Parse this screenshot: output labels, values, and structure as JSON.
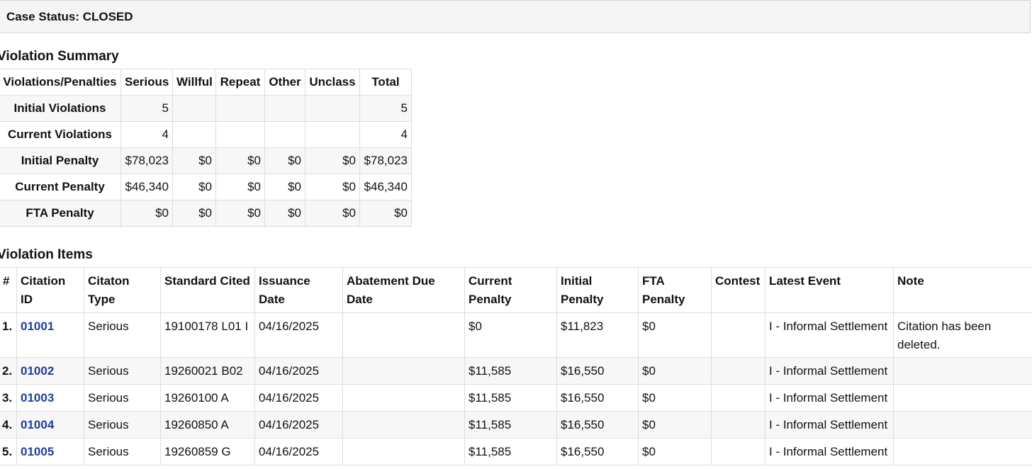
{
  "case_status": "Case Status: CLOSED",
  "violation_summary": {
    "title": "Violation Summary",
    "headers": [
      "Violations/Penalties",
      "Serious",
      "Willful",
      "Repeat",
      "Other",
      "Unclass",
      "Total"
    ],
    "rows": [
      {
        "label": "Initial Violations",
        "cells": [
          "5",
          "",
          "",
          "",
          "",
          "5"
        ]
      },
      {
        "label": "Current Violations",
        "cells": [
          "4",
          "",
          "",
          "",
          "",
          "4"
        ]
      },
      {
        "label": "Initial Penalty",
        "cells": [
          "$78,023",
          "$0",
          "$0",
          "$0",
          "$0",
          "$78,023"
        ]
      },
      {
        "label": "Current Penalty",
        "cells": [
          "$46,340",
          "$0",
          "$0",
          "$0",
          "$0",
          "$46,340"
        ]
      },
      {
        "label": "FTA Penalty",
        "cells": [
          "$0",
          "$0",
          "$0",
          "$0",
          "$0",
          "$0"
        ]
      }
    ]
  },
  "violation_items": {
    "title": "Violation Items",
    "headers": [
      "#",
      "Citation ID",
      "Citaton Type",
      "Standard Cited",
      "Issuance Date",
      "Abatement Due Date",
      "Current Penalty",
      "Initial Penalty",
      "FTA Penalty",
      "Contest",
      "Latest Event",
      "Note"
    ],
    "rows": [
      {
        "num": "1.",
        "citation_id": "01001",
        "type": "Serious",
        "standard": "19100178 L01 I",
        "issuance_date": "04/16/2025",
        "abatement_due": "",
        "current_penalty": "$0",
        "initial_penalty": "$11,823",
        "fta_penalty": "$0",
        "contest": "",
        "latest_event": "I - Informal Settlement",
        "note": "Citation has been deleted."
      },
      {
        "num": "2.",
        "citation_id": "01002",
        "type": "Serious",
        "standard": "19260021 B02",
        "issuance_date": "04/16/2025",
        "abatement_due": "",
        "current_penalty": "$11,585",
        "initial_penalty": "$16,550",
        "fta_penalty": "$0",
        "contest": "",
        "latest_event": "I - Informal Settlement",
        "note": ""
      },
      {
        "num": "3.",
        "citation_id": "01003",
        "type": "Serious",
        "standard": "19260100 A",
        "issuance_date": "04/16/2025",
        "abatement_due": "",
        "current_penalty": "$11,585",
        "initial_penalty": "$16,550",
        "fta_penalty": "$0",
        "contest": "",
        "latest_event": "I - Informal Settlement",
        "note": ""
      },
      {
        "num": "4.",
        "citation_id": "01004",
        "type": "Serious",
        "standard": "19260850 A",
        "issuance_date": "04/16/2025",
        "abatement_due": "",
        "current_penalty": "$11,585",
        "initial_penalty": "$16,550",
        "fta_penalty": "$0",
        "contest": "",
        "latest_event": "I - Informal Settlement",
        "note": ""
      },
      {
        "num": "5.",
        "citation_id": "01005",
        "type": "Serious",
        "standard": "19260859 G",
        "issuance_date": "04/16/2025",
        "abatement_due": "",
        "current_penalty": "$11,585",
        "initial_penalty": "$16,550",
        "fta_penalty": "$0",
        "contest": "",
        "latest_event": "I - Informal Settlement",
        "note": ""
      }
    ]
  },
  "colors": {
    "link": "#1f3f9b",
    "status_bar_bg": "#f5f5f5",
    "stripe_bg": "#f7f7f7",
    "border": "#dddddd"
  }
}
